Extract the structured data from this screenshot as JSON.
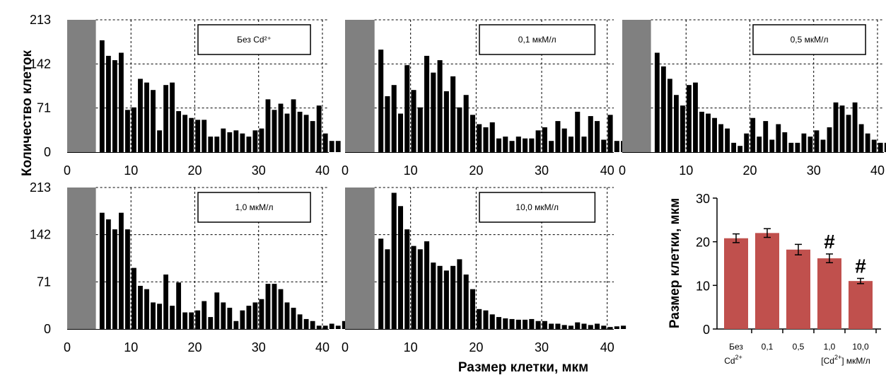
{
  "shared": {
    "ylabel": "Количество клеток",
    "xlabel": "Размер клетки, мкм",
    "yticks": [
      "0",
      "71",
      "142",
      "213"
    ],
    "xticks": [
      "0",
      "10",
      "20",
      "30",
      "40"
    ],
    "shaded_band_end_um": 4.5,
    "colors": {
      "bars": "#000000",
      "shade": "#808080",
      "summary_bar": "#c0504d",
      "grid": "#000000"
    }
  },
  "chart_data": [
    {
      "type": "bar",
      "label": "Без Cd²⁺",
      "x_start": 5,
      "bin_width": 1,
      "ylim": [
        0,
        213
      ],
      "xlim": [
        0,
        41
      ],
      "values": [
        180,
        155,
        148,
        160,
        68,
        72,
        118,
        112,
        100,
        35,
        108,
        112,
        66,
        60,
        55,
        52,
        52,
        25,
        25,
        38,
        32,
        35,
        30,
        25,
        35,
        38,
        85,
        68,
        78,
        62,
        85,
        65,
        60,
        50,
        75,
        30,
        18,
        18
      ]
    },
    {
      "type": "bar",
      "label": "0,1 мкМ/л",
      "x_start": 5,
      "bin_width": 1,
      "ylim": [
        0,
        213
      ],
      "xlim": [
        0,
        41
      ],
      "values": [
        165,
        90,
        108,
        62,
        140,
        100,
        72,
        155,
        128,
        148,
        98,
        122,
        72,
        92,
        60,
        45,
        40,
        48,
        22,
        25,
        18,
        25,
        22,
        22,
        35,
        40,
        18,
        50,
        38,
        25,
        65,
        25,
        58,
        50,
        20,
        60,
        18,
        18,
        15,
        10
      ]
    },
    {
      "type": "bar",
      "label": "0,5 мкМ/л",
      "x_start": 5,
      "bin_width": 1,
      "ylim": [
        0,
        213
      ],
      "xlim": [
        0,
        41
      ],
      "values": [
        160,
        138,
        118,
        92,
        75,
        108,
        112,
        65,
        62,
        55,
        45,
        38,
        15,
        10,
        30,
        55,
        25,
        50,
        20,
        45,
        32,
        15,
        15,
        30,
        25,
        35,
        20,
        40,
        80,
        75,
        60,
        80,
        45,
        30,
        20,
        15,
        15,
        12,
        10,
        15,
        14,
        8,
        8
      ]
    },
    {
      "type": "bar",
      "label": "1,0 мкМ/л",
      "x_start": 5,
      "bin_width": 1,
      "ylim": [
        0,
        213
      ],
      "xlim": [
        0,
        41
      ],
      "values": [
        175,
        165,
        150,
        175,
        150,
        92,
        65,
        60,
        40,
        38,
        82,
        35,
        70,
        25,
        25,
        28,
        42,
        18,
        55,
        40,
        32,
        12,
        28,
        35,
        40,
        45,
        68,
        68,
        60,
        40,
        32,
        22,
        15,
        12,
        5,
        5,
        8,
        5,
        12,
        10
      ]
    },
    {
      "type": "bar",
      "label": "10,0 мкМ/л",
      "x_start": 5,
      "bin_width": 1,
      "ylim": [
        0,
        213
      ],
      "xlim": [
        0,
        41
      ],
      "values": [
        136,
        120,
        205,
        185,
        150,
        125,
        120,
        132,
        100,
        95,
        88,
        95,
        105,
        82,
        60,
        30,
        28,
        22,
        18,
        16,
        15,
        14,
        14,
        15,
        12,
        12,
        8,
        8,
        6,
        5,
        10,
        8,
        6,
        8,
        5,
        3,
        4,
        5
      ]
    },
    {
      "type": "bar",
      "ylabel": "Размер клетки, мкм",
      "xlabel_parts": [
        "[Cd",
        "2+",
        "] мкМ/л"
      ],
      "categories": [
        "Без Cd²⁺",
        "0,1",
        "0,5",
        "1,0",
        "10,0"
      ],
      "values": [
        20.8,
        22.0,
        18.2,
        16.2,
        11.0
      ],
      "errors": [
        1.0,
        1.0,
        1.2,
        1.0,
        0.6
      ],
      "markers": [
        "",
        "",
        "",
        "#",
        "#"
      ],
      "yticks": [
        "0",
        "10",
        "20",
        "30"
      ],
      "ylim": [
        0,
        30
      ]
    }
  ],
  "summary_labels": {
    "cat0_line1": "Без",
    "cat0_line2": "Cd",
    "cat0_sup": "2+"
  }
}
